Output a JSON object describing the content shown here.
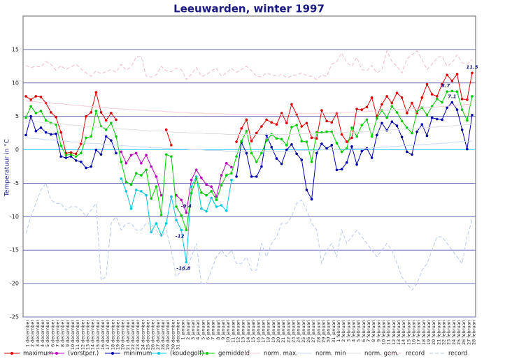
{
  "chart_data": {
    "type": "line",
    "title": "Leeuwarden, winter 1997",
    "y_label": "Temperatuur in °C",
    "categories": [
      "1 december",
      "2 december",
      "3 december",
      "4 december",
      "5 december",
      "6 december",
      "7 december",
      "8 december",
      "9 december",
      "10 december",
      "11 december",
      "12 december",
      "13 december",
      "14 december",
      "15 december",
      "16 december",
      "17 december",
      "18 december",
      "19 december",
      "20 december",
      "21 december",
      "22 december",
      "23 december",
      "24 december",
      "25 december",
      "26 december",
      "27 december",
      "28 december",
      "29 december",
      "30 december",
      "31 december",
      "1 januari",
      "2 januari",
      "3 januari",
      "4 januari",
      "5 januari",
      "6 januari",
      "7 januari",
      "8 januari",
      "9 januari",
      "10 januari",
      "11 januari",
      "12 januari",
      "13 januari",
      "14 januari",
      "15 januari",
      "16 januari",
      "17 januari",
      "18 januari",
      "19 januari",
      "20 januari",
      "21 januari",
      "22 januari",
      "23 januari",
      "24 januari",
      "25 januari",
      "26 januari",
      "27 januari",
      "28 januari",
      "29 januari",
      "30 januari",
      "31 januari",
      "1 februari",
      "2 februari",
      "3 februari",
      "4 februari",
      "5 februari",
      "6 februari",
      "7 februari",
      "8 februari",
      "9 februari",
      "10 februari",
      "11 februari",
      "12 februari",
      "13 februari",
      "14 februari",
      "15 februari",
      "16 februari",
      "17 februari",
      "18 februari",
      "19 februari",
      "20 februari",
      "21 februari",
      "22 februari",
      "23 februari",
      "24 februari",
      "25 februari",
      "26 februari",
      "27 februari",
      "28 februari"
    ],
    "ylim": [
      -25,
      20
    ],
    "yticks": [
      -25,
      -20,
      -15,
      -10,
      -5,
      0,
      5,
      10,
      15
    ],
    "grid": true,
    "series": [
      {
        "name": "maximum",
        "color": "#dd0000",
        "markers": true,
        "values": [
          8.0,
          7.5,
          8.0,
          7.9,
          7.0,
          5.6,
          4.9,
          2.6,
          -0.5,
          -0.4,
          -0.6,
          0.9,
          5.0,
          5.6,
          8.6,
          5.6,
          4.4,
          5.5,
          4.5,
          null,
          null,
          null,
          null,
          null,
          null,
          null,
          null,
          null,
          3.0,
          0.7,
          null,
          null,
          null,
          null,
          null,
          null,
          null,
          null,
          null,
          null,
          null,
          null,
          1.2,
          3.2,
          4.5,
          1.3,
          2.5,
          3.5,
          4.5,
          4.1,
          3.8,
          5.5,
          4.0,
          6.8,
          5.3,
          3.5,
          4.0,
          1.8,
          1.7,
          5.9,
          4.3,
          4.1,
          5.5,
          2.3,
          1.2,
          1.8,
          6.1,
          6.0,
          6.4,
          7.8,
          5.0,
          6.8,
          8.0,
          7.0,
          8.5,
          7.8,
          5.5,
          7.0,
          5.5,
          7.8,
          9.8,
          8.3,
          8.0,
          9.8,
          11.2,
          10.3,
          11.3,
          7.6,
          7.5,
          11.5
        ]
      },
      {
        "name": "(vorstper.)",
        "color": "#bb00bb",
        "markers": true,
        "values": [
          null,
          null,
          null,
          null,
          null,
          null,
          null,
          null,
          null,
          null,
          null,
          null,
          null,
          null,
          null,
          null,
          null,
          null,
          null,
          -0.3,
          -2.0,
          -0.8,
          -0.5,
          -2.0,
          -0.8,
          -2.5,
          -4.0,
          -6.8,
          null,
          null,
          -6.8,
          -7.5,
          -9.4,
          -4.5,
          -3.0,
          -4.2,
          -5.2,
          -5.5,
          -7.0,
          -3.8,
          -2.0,
          -2.6,
          null,
          null,
          null,
          null,
          null,
          null,
          null,
          null,
          null,
          null,
          null,
          null,
          null,
          null,
          null,
          null,
          null,
          null,
          null,
          null,
          null,
          null,
          null,
          null,
          null,
          null,
          null,
          null,
          null,
          null,
          null,
          null,
          null,
          null,
          null,
          null,
          null,
          null,
          null,
          null,
          null,
          null,
          null,
          null,
          null,
          null,
          null,
          null
        ]
      },
      {
        "name": "minimum",
        "color": "#0000aa",
        "markers": true,
        "values": [
          2.2,
          5.0,
          2.8,
          3.3,
          2.6,
          2.3,
          2.4,
          -1.0,
          -1.2,
          -1.0,
          -1.6,
          -1.8,
          -2.7,
          -2.5,
          0.0,
          -0.7,
          2.0,
          1.4,
          -0.5,
          null,
          null,
          null,
          null,
          null,
          null,
          null,
          null,
          null,
          null,
          null,
          null,
          null,
          null,
          null,
          null,
          null,
          null,
          null,
          null,
          null,
          null,
          null,
          -4.0,
          1.1,
          -0.5,
          -4.0,
          -4.0,
          -2.5,
          2.2,
          0.4,
          -1.3,
          -2.1,
          0.0,
          0.8,
          -0.6,
          -1.5,
          -6.0,
          -7.4,
          -0.5,
          0.9,
          0.2,
          0.7,
          -3.0,
          -2.9,
          -1.9,
          0.5,
          -2.2,
          -0.2,
          0.2,
          -1.2,
          2.2,
          4.0,
          2.9,
          4.2,
          3.6,
          1.9,
          -0.3,
          -0.7,
          2.7,
          3.8,
          2.1,
          4.8,
          4.6,
          4.5,
          6.3,
          7.1,
          6.0,
          3.0,
          0.1,
          5.2
        ]
      },
      {
        "name": "(koudegolf)",
        "color": "#00c8dc",
        "markers": true,
        "values": [
          null,
          null,
          null,
          null,
          null,
          null,
          null,
          null,
          null,
          null,
          null,
          null,
          null,
          null,
          null,
          null,
          null,
          null,
          null,
          -4.3,
          -6.2,
          -8.8,
          -6.0,
          -6.2,
          -6.8,
          -12.3,
          -11.0,
          -12.8,
          -11.0,
          -7.0,
          -10.5,
          -12,
          -16.8,
          -5.5,
          -4.0,
          -8.8,
          -9.2,
          -7.2,
          -8.5,
          -8.3,
          -9.1,
          -4.5,
          null,
          null,
          null,
          null,
          null,
          null,
          null,
          null,
          null,
          null,
          null,
          null,
          null,
          null,
          null,
          null,
          null,
          null,
          null,
          null,
          null,
          null,
          null,
          null,
          null,
          null,
          null,
          null,
          null,
          null,
          null,
          null,
          null,
          null,
          null,
          null,
          null,
          null,
          null,
          null,
          null,
          null,
          null,
          null,
          null,
          null,
          null,
          null
        ]
      },
      {
        "name": "gemiddeld",
        "color": "#00cc00",
        "markers": true,
        "values": [
          4.8,
          6.5,
          5.5,
          5.8,
          4.4,
          4.0,
          3.8,
          0.6,
          -0.8,
          -0.7,
          -1.0,
          -0.5,
          1.8,
          2.0,
          5.8,
          3.5,
          3.0,
          4.0,
          2.0,
          -1.8,
          -4.8,
          -5.2,
          -3.5,
          -3.8,
          -3.0,
          -7.3,
          -5.5,
          -9.7,
          -0.7,
          -1.0,
          -8.5,
          -9.8,
          -12.0,
          -6.5,
          -4.3,
          -6.4,
          -6.8,
          -6.2,
          -7.5,
          -5.3,
          -3.8,
          -3.5,
          -1.0,
          1.3,
          2.8,
          -0.5,
          -1.8,
          -0.5,
          1.4,
          2.3,
          1.7,
          1.6,
          0.7,
          3.4,
          3.7,
          1.3,
          1.2,
          -1.8,
          2.6,
          2.6,
          2.7,
          2.7,
          1.0,
          -0.3,
          0.2,
          3.3,
          2.0,
          3.7,
          4.5,
          2.0,
          4.7,
          5.9,
          4.8,
          6.5,
          5.6,
          4.3,
          3.3,
          2.5,
          5.7,
          6.3,
          5.2,
          6.5,
          7.6,
          7.1,
          8.7,
          8.8,
          8.7,
          6.0,
          4.4,
          8.0
        ]
      },
      {
        "name": "norm. max.",
        "color": "#f5c8d8",
        "values": [
          7.3,
          7.2,
          7.2,
          7.1,
          7.0,
          7.0,
          6.9,
          6.9,
          6.8,
          6.7,
          6.7,
          6.6,
          6.5,
          6.5,
          6.4,
          6.4,
          6.3,
          6.2,
          6.2,
          6.1,
          6.1,
          6.0,
          6.0,
          5.9,
          5.9,
          5.8,
          5.8,
          5.8,
          5.7,
          5.7,
          5.6,
          5.6,
          5.6,
          5.5,
          5.5,
          5.5,
          5.4,
          5.4,
          5.4,
          5.4,
          5.3,
          5.3,
          5.3,
          5.3,
          5.3,
          5.3,
          5.3,
          5.3,
          5.3,
          5.3,
          5.3,
          5.3,
          5.3,
          5.3,
          5.4,
          5.4,
          5.4,
          5.4,
          5.4,
          5.5,
          5.5,
          5.5,
          5.5,
          5.6,
          5.6,
          5.6,
          5.7,
          5.7,
          5.7,
          5.8,
          5.8,
          5.9,
          5.9,
          6.0,
          6.0,
          6.1,
          6.1,
          6.2,
          6.2,
          6.3,
          6.3,
          6.4,
          6.4,
          6.5,
          6.5,
          6.6,
          6.7,
          6.7,
          6.8,
          6.8
        ]
      },
      {
        "name": "norm. min",
        "color": "#c8d8f5",
        "values": [
          1.8,
          1.7,
          1.7,
          1.6,
          1.5,
          1.5,
          1.4,
          1.4,
          1.3,
          1.2,
          1.2,
          1.1,
          1.0,
          1.0,
          0.9,
          0.9,
          0.8,
          0.7,
          0.7,
          0.6,
          0.6,
          0.5,
          0.5,
          0.4,
          0.4,
          0.3,
          0.3,
          0.3,
          0.2,
          0.2,
          0.1,
          0.1,
          0.1,
          0.0,
          0.0,
          0.0,
          -0.1,
          -0.1,
          -0.1,
          -0.1,
          -0.2,
          -0.2,
          -0.2,
          -0.2,
          -0.2,
          -0.2,
          -0.2,
          -0.2,
          -0.2,
          -0.2,
          -0.2,
          -0.2,
          -0.2,
          -0.2,
          -0.1,
          -0.1,
          -0.1,
          -0.1,
          -0.1,
          0.0,
          0.0,
          0.0,
          0.0,
          0.1,
          0.1,
          0.1,
          0.2,
          0.2,
          0.2,
          0.3,
          0.3,
          0.4,
          0.4,
          0.5,
          0.5,
          0.6,
          0.6,
          0.7,
          0.7,
          0.8,
          0.8,
          0.9,
          0.9,
          1.0,
          1.0,
          1.1,
          1.2,
          1.2,
          1.3,
          1.3
        ]
      },
      {
        "name": "norm. gem.",
        "color": "#dddddd",
        "values": [
          4.3,
          4.2,
          4.2,
          4.1,
          4.0,
          4.0,
          3.9,
          3.9,
          3.8,
          3.7,
          3.7,
          3.6,
          3.5,
          3.5,
          3.4,
          3.4,
          3.3,
          3.2,
          3.2,
          3.1,
          3.1,
          3.0,
          3.0,
          2.9,
          2.9,
          2.8,
          2.8,
          2.8,
          2.7,
          2.7,
          2.6,
          2.6,
          2.6,
          2.5,
          2.5,
          2.5,
          2.4,
          2.4,
          2.4,
          2.4,
          2.3,
          2.3,
          2.3,
          2.3,
          2.3,
          2.3,
          2.3,
          2.3,
          2.3,
          2.3,
          2.3,
          2.3,
          2.3,
          2.3,
          2.4,
          2.4,
          2.4,
          2.4,
          2.4,
          2.5,
          2.5,
          2.5,
          2.5,
          2.6,
          2.6,
          2.6,
          2.7,
          2.7,
          2.7,
          2.8,
          2.8,
          2.9,
          2.9,
          3.0,
          3.0,
          3.1,
          3.1,
          3.2,
          3.2,
          3.3,
          3.3,
          3.4,
          3.4,
          3.5,
          3.5,
          3.6,
          3.7,
          3.7,
          3.8,
          3.8
        ]
      },
      {
        "name": "record",
        "color": "#f0b8d0",
        "dashed": true,
        "values": [
          12.6,
          12.3,
          12.5,
          12.4,
          13.2,
          12.8,
          11.9,
          12.6,
          12.0,
          12.4,
          12.8,
          12.1,
          11.5,
          11.0,
          11.8,
          11.4,
          11.7,
          12.0,
          11.6,
          12.8,
          11.9,
          12.4,
          13.9,
          14.0,
          11.0,
          10.9,
          11.2,
          12.5,
          11.8,
          11.7,
          12.2,
          12.0,
          10.5,
          11.3,
          12.3,
          11.0,
          11.2,
          11.8,
          12.2,
          11.0,
          11.5,
          12.2,
          11.6,
          12.0,
          12.5,
          11.8,
          11.0,
          10.9,
          11.5,
          11.2,
          11.0,
          11.3,
          10.8,
          11.0,
          11.2,
          11.5,
          11.1,
          11.0,
          10.5,
          11.2,
          11.0,
          12.8,
          13.2,
          14.5,
          13.0,
          12.5,
          13.8,
          12.0,
          11.8,
          12.6,
          11.5,
          12.0,
          14.8,
          13.2,
          12.5,
          11.5,
          13.6,
          14.2,
          14.8,
          13.5,
          12.0,
          12.8,
          13.8,
          14.0,
          12.5,
          13.0,
          14.2,
          13.0,
          12.8,
          13.5
        ]
      },
      {
        "name": "record",
        "color": "#b8c8f0",
        "dashed": true,
        "values": [
          -12.5,
          -10,
          -8,
          -6,
          -5,
          -7.5,
          -8,
          -8,
          -9,
          -8.5,
          -8.5,
          -9,
          -10,
          -9,
          -8,
          -19.5,
          -19,
          -11,
          -10,
          -12,
          -11,
          -11,
          -12,
          -12,
          -11,
          -11,
          -12,
          -13,
          -12,
          -15,
          -19,
          -18,
          -18,
          -16,
          -14,
          -20,
          -20,
          -18,
          -16,
          -15,
          -16,
          -15,
          -17,
          -17,
          -16,
          -18,
          -18,
          -14,
          -16,
          -14,
          -13,
          -11,
          -11,
          -10,
          -8,
          -7.5,
          -9,
          -11,
          -12,
          -17,
          -15,
          -14,
          -16,
          -12,
          -14,
          -13,
          -12,
          -13,
          -14,
          -15,
          -16,
          -15,
          -14,
          -15,
          -17,
          -19,
          -20,
          -21,
          -20,
          -18,
          -17,
          -15,
          -13,
          -13,
          -14,
          -15,
          -16,
          -17,
          -13,
          -10.5
        ]
      }
    ]
  }
}
